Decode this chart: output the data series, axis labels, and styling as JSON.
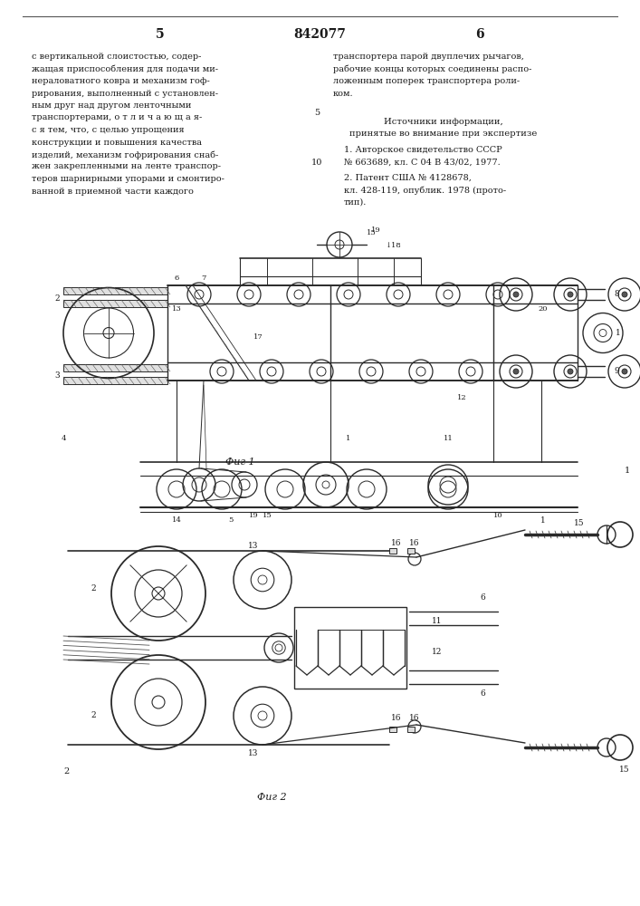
{
  "page_number_left": "5",
  "page_number_right": "6",
  "patent_number": "842077",
  "text_left_lines": [
    "с вертикальной слоистостью, содер-",
    "жащая приспособления для подачи ми-",
    "нераловатного ковра и механизм гоф-",
    "рирования, выполненный с установлен-",
    "ным друг над другом ленточными",
    "транспортерами, о т л и ч а ю щ а я-",
    "с я тем, что, с целью упрощения",
    "конструкции и повышения качества",
    "изделий, механизм гофрирования снаб-",
    "жен закрепленными на ленте транспор-",
    "теров шарнирными упорами и смонтиро-",
    "ванной в приемной части каждого"
  ],
  "text_right_lines": [
    "транспортера парой двуплечих рычагов,",
    "рабочие концы которых соединены распо-",
    "ложенным поперек транспортера роли-",
    "ком."
  ],
  "sources_title": "Источники информации,",
  "sources_subtitle": "принятые во внимание при экспертизе",
  "source1_lines": [
    "1. Авторское свидетельство СССР",
    "№ 663689, кл. С 04 В 43/02, 1977."
  ],
  "source2_lines": [
    "2. Патент США № 4128678,",
    "кл. 428-119, опублик. 1978 (прото-",
    "тип)."
  ],
  "line_num_5": "5",
  "line_num_10": "10",
  "fig1_caption": "Фиг 1",
  "fig2_caption": "Фиг 2",
  "bg_color": "#ffffff",
  "text_color": "#1a1a1a",
  "draw_color": "#2a2a2a"
}
